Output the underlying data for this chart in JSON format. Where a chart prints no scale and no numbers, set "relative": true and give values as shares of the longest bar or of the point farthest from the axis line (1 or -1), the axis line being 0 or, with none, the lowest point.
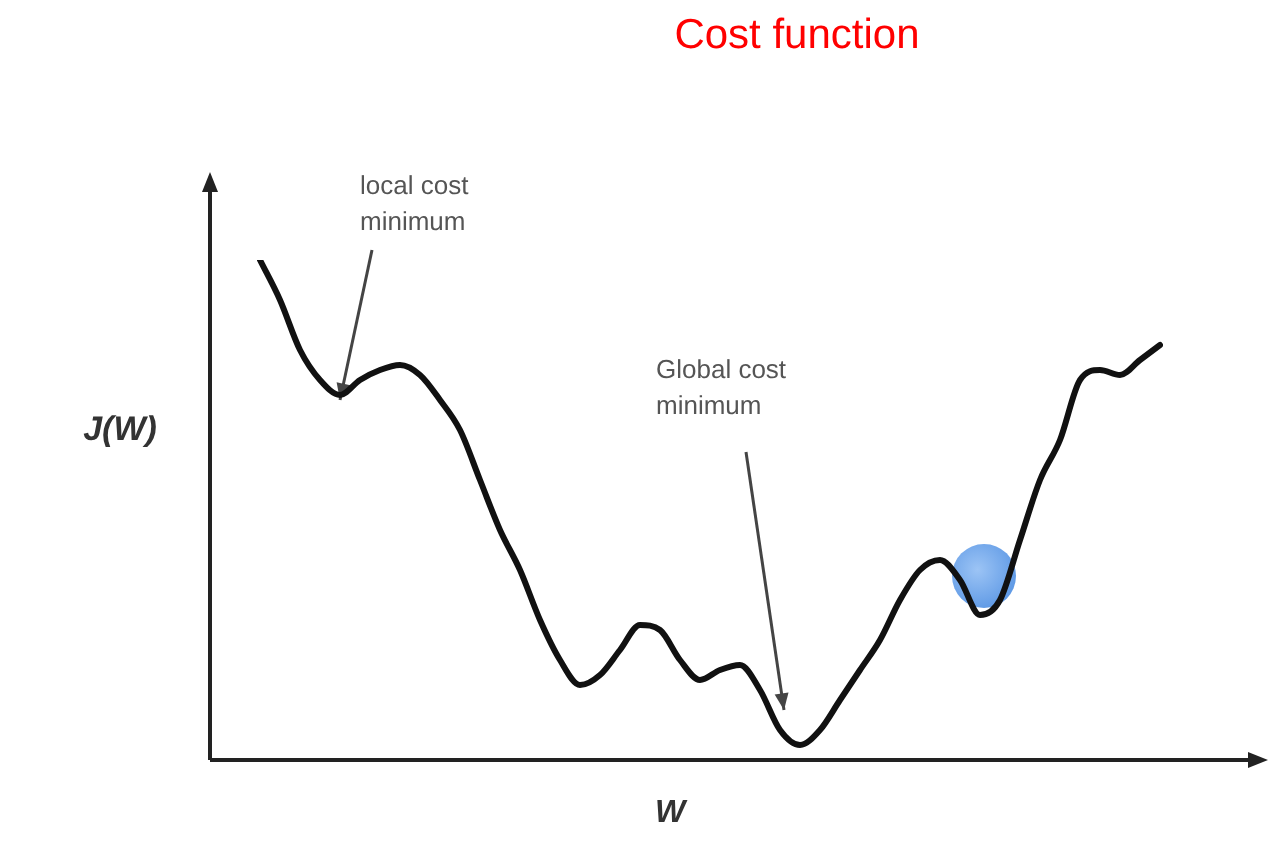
{
  "chart_data": {
    "type": "line",
    "title": "Cost function",
    "xlabel": "W",
    "ylabel": "J(W)",
    "relative": true,
    "legend": false,
    "grid": false,
    "marker": "none",
    "annotations": [
      "local cost minimum",
      "Global cost minimum"
    ],
    "categories": [
      null,
      null,
      null,
      null,
      null,
      null,
      null,
      null,
      null,
      null,
      null,
      null,
      null,
      null,
      null,
      null,
      null,
      null,
      null,
      null,
      null,
      null,
      null,
      null,
      null,
      null,
      null,
      null,
      null,
      null,
      null,
      null,
      null,
      null,
      null,
      null,
      null,
      null,
      null,
      null,
      null,
      null,
      null,
      null,
      null,
      null
    ],
    "series": [
      {
        "color": "#111111",
        "values": [
          1.0,
          0.92,
          0.82,
          0.76,
          0.73,
          0.76,
          0.78,
          0.79,
          0.77,
          0.72,
          0.66,
          0.56,
          0.46,
          0.38,
          0.28,
          0.2,
          0.15,
          0.17,
          0.22,
          0.27,
          0.26,
          0.2,
          0.16,
          0.18,
          0.19,
          0.14,
          0.06,
          0.03,
          0.06,
          0.12,
          0.18,
          0.24,
          0.32,
          0.38,
          0.4,
          0.36,
          0.29,
          0.32,
          0.44,
          0.56,
          0.64,
          0.76,
          0.78,
          0.77,
          0.8,
          0.83
        ]
      }
    ]
  }
}
